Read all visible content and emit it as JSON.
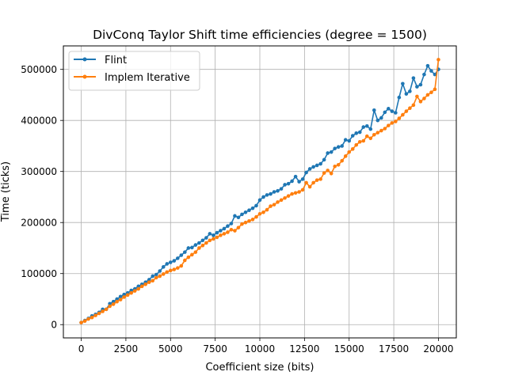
{
  "chart_data": {
    "type": "line",
    "title": "DivConq Taylor Shift time efficiencies (degree = 1500)",
    "xlabel": "Coefficient size (bits)",
    "ylabel": "Time (ticks)",
    "xlim": [
      -1000,
      21000
    ],
    "ylim": [
      -26000,
      546000
    ],
    "xticks": [
      0,
      2500,
      5000,
      7500,
      10000,
      12500,
      15000,
      17500,
      20000
    ],
    "xtick_labels": [
      "0",
      "2500",
      "5000",
      "7500",
      "10000",
      "12500",
      "15000",
      "17500",
      "20000"
    ],
    "yticks": [
      0,
      100000,
      200000,
      300000,
      400000,
      500000
    ],
    "ytick_labels": [
      "0",
      "100000",
      "200000",
      "300000",
      "400000",
      "500000"
    ],
    "grid": true,
    "legend_position": "upper-left",
    "x": [
      0,
      200,
      400,
      600,
      800,
      1000,
      1200,
      1400,
      1600,
      1800,
      2000,
      2200,
      2400,
      2600,
      2800,
      3000,
      3200,
      3400,
      3600,
      3800,
      4000,
      4200,
      4400,
      4600,
      4800,
      5000,
      5200,
      5400,
      5600,
      5800,
      6000,
      6200,
      6400,
      6600,
      6800,
      7000,
      7200,
      7400,
      7600,
      7800,
      8000,
      8200,
      8400,
      8600,
      8800,
      9000,
      9200,
      9400,
      9600,
      9800,
      10000,
      10200,
      10400,
      10600,
      10800,
      11000,
      11200,
      11400,
      11600,
      11800,
      12000,
      12200,
      12400,
      12600,
      12800,
      13000,
      13200,
      13400,
      13600,
      13800,
      14000,
      14200,
      14400,
      14600,
      14800,
      15000,
      15200,
      15400,
      15600,
      15800,
      16000,
      16200,
      16400,
      16600,
      16800,
      17000,
      17200,
      17400,
      17600,
      17800,
      18000,
      18200,
      18400,
      18600,
      18800,
      19000,
      19200,
      19400,
      19600,
      19800,
      20000
    ],
    "series": [
      {
        "name": "Flint",
        "color": "#1f77b4",
        "values": [
          4000,
          8000,
          12000,
          17000,
          20000,
          24000,
          30000,
          30000,
          41000,
          45000,
          50000,
          55000,
          59000,
          62000,
          67000,
          70000,
          75000,
          79000,
          83000,
          88000,
          95000,
          98000,
          105000,
          113000,
          119000,
          122000,
          125000,
          130000,
          136000,
          142000,
          150000,
          151000,
          156000,
          160000,
          165000,
          170000,
          178000,
          175000,
          180000,
          184000,
          188000,
          193000,
          198000,
          213000,
          210000,
          216000,
          220000,
          224000,
          228000,
          233000,
          244000,
          250000,
          254000,
          256000,
          260000,
          262000,
          266000,
          274000,
          276000,
          281000,
          290000,
          280000,
          285000,
          298000,
          305000,
          309000,
          312000,
          315000,
          323000,
          336000,
          338000,
          345000,
          348000,
          350000,
          362000,
          360000,
          370000,
          375000,
          377000,
          387000,
          389000,
          383000,
          420000,
          400000,
          405000,
          416000,
          423000,
          418000,
          415000,
          445000,
          472000,
          452000,
          457000,
          483000,
          466000,
          470000,
          490000,
          507000,
          497000,
          490000,
          500000
        ]
      },
      {
        "name": "Implem Iterative",
        "color": "#ff7f0e",
        "values": [
          4000,
          7000,
          11000,
          14000,
          18000,
          22000,
          26000,
          30000,
          36000,
          40000,
          45000,
          49000,
          54000,
          58000,
          62000,
          66000,
          70000,
          75000,
          79000,
          83000,
          86000,
          92000,
          95000,
          99000,
          103000,
          106000,
          108000,
          111000,
          115000,
          126000,
          132000,
          137000,
          142000,
          150000,
          155000,
          160000,
          165000,
          168000,
          171000,
          175000,
          178000,
          181000,
          186000,
          184000,
          190000,
          197000,
          200000,
          203000,
          206000,
          211000,
          217000,
          220000,
          225000,
          232000,
          235000,
          240000,
          244000,
          248000,
          252000,
          256000,
          258000,
          260000,
          264000,
          278000,
          270000,
          278000,
          283000,
          285000,
          297000,
          302000,
          296000,
          310000,
          313000,
          321000,
          330000,
          338000,
          344000,
          352000,
          358000,
          360000,
          369000,
          365000,
          372000,
          376000,
          380000,
          384000,
          390000,
          395000,
          398000,
          404000,
          411000,
          418000,
          424000,
          430000,
          447000,
          437000,
          443000,
          450000,
          455000,
          461000,
          519000
        ]
      }
    ]
  }
}
